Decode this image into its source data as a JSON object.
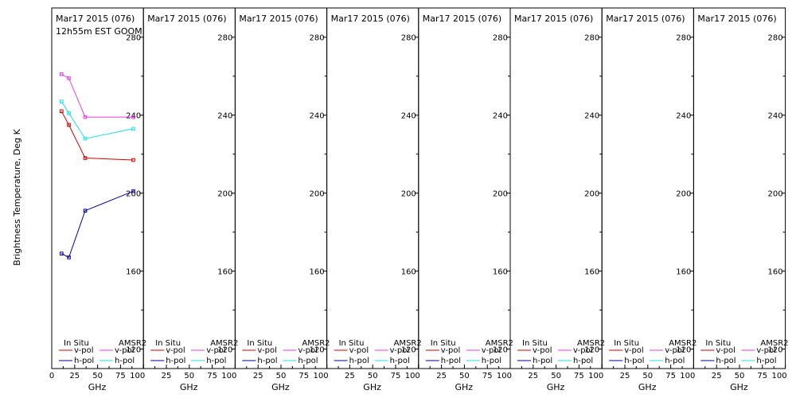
{
  "chart_data": {
    "type": "line",
    "ylabel": "Brightness Temperature, Deg K",
    "xlabel": "GHz",
    "ylim": [
      110,
      295
    ],
    "yticks": [
      120,
      160,
      200,
      240,
      280
    ],
    "xlim": [
      0,
      100
    ],
    "xticks": [
      0,
      25,
      50,
      75,
      100
    ],
    "first_xtick_label": "0",
    "subsequent_xtick_labels": [
      "25",
      "50",
      "75",
      "100"
    ],
    "legend": {
      "placement": "bottom",
      "insitu_title": "In Situ",
      "amsr2_title": "AMSR2",
      "vpol": "v-pol",
      "hpol": "h-pol"
    },
    "colors": {
      "insitu_v": "#d40000",
      "insitu_h": "#0000a0",
      "amsr2_v": "#e040e0",
      "amsr2_h": "#20e0e0",
      "frame": "#000000"
    },
    "panels": [
      {
        "title": "Mar17 2015 (076)",
        "subtitle": "12h55m EST GOOM",
        "series": [
          {
            "name": "In Situ v-pol",
            "key": "insitu_v",
            "x": [
              10.7,
              18.7,
              36.5,
              89.0
            ],
            "y": [
              242,
              235,
              218,
              217
            ]
          },
          {
            "name": "In Situ h-pol",
            "key": "insitu_h",
            "x": [
              10.7,
              18.7,
              36.5,
              89.0
            ],
            "y": [
              169,
              167,
              191,
              201
            ]
          },
          {
            "name": "AMSR2 v-pol",
            "key": "amsr2_v",
            "x": [
              10.7,
              18.7,
              36.5,
              89.0
            ],
            "y": [
              261,
              259,
              239,
              239
            ]
          },
          {
            "name": "AMSR2 h-pol",
            "key": "amsr2_h",
            "x": [
              10.7,
              18.7,
              36.5,
              89.0
            ],
            "y": [
              247,
              241,
              228,
              233
            ]
          }
        ]
      },
      {
        "title": "Mar17 2015 (076)",
        "subtitle": "",
        "series": []
      },
      {
        "title": "Mar17 2015 (076)",
        "subtitle": "",
        "series": []
      },
      {
        "title": "Mar17 2015 (076)",
        "subtitle": "",
        "series": []
      },
      {
        "title": "Mar17 2015 (076)",
        "subtitle": "",
        "series": []
      },
      {
        "title": "Mar17 2015 (076)",
        "subtitle": "",
        "series": []
      },
      {
        "title": "Mar17 2015 (076)",
        "subtitle": "",
        "series": []
      },
      {
        "title": "Mar17 2015 (076)",
        "subtitle": "",
        "series": []
      }
    ]
  }
}
